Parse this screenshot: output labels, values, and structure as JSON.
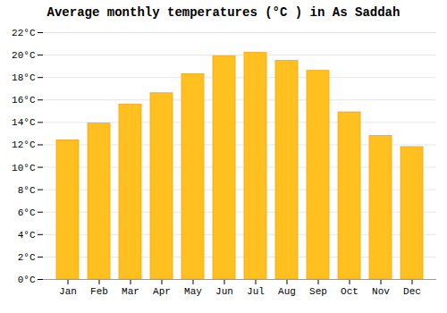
{
  "chart_data": {
    "type": "bar",
    "title": "Average monthly temperatures (°C ) in As Saddah",
    "categories": [
      "Jan",
      "Feb",
      "Mar",
      "Apr",
      "May",
      "Jun",
      "Jul",
      "Aug",
      "Sep",
      "Oct",
      "Nov",
      "Dec"
    ],
    "values": [
      12.4,
      13.9,
      15.6,
      16.6,
      18.3,
      19.9,
      20.2,
      19.5,
      18.6,
      14.9,
      12.8,
      11.8
    ],
    "color": "#FFC020",
    "ylim": [
      0,
      22
    ],
    "yticks": [
      {
        "value": 0,
        "label": "0°C"
      },
      {
        "value": 2,
        "label": "2°C"
      },
      {
        "value": 4,
        "label": "4°C"
      },
      {
        "value": 6,
        "label": "6°C"
      },
      {
        "value": 8,
        "label": "8°C"
      },
      {
        "value": 10,
        "label": "10°C"
      },
      {
        "value": 12,
        "label": "12°C"
      },
      {
        "value": 14,
        "label": "14°C"
      },
      {
        "value": 16,
        "label": "16°C"
      },
      {
        "value": 18,
        "label": "18°C"
      },
      {
        "value": 20,
        "label": "20°C"
      },
      {
        "value": 22,
        "label": "22°C"
      }
    ],
    "grid": true
  }
}
